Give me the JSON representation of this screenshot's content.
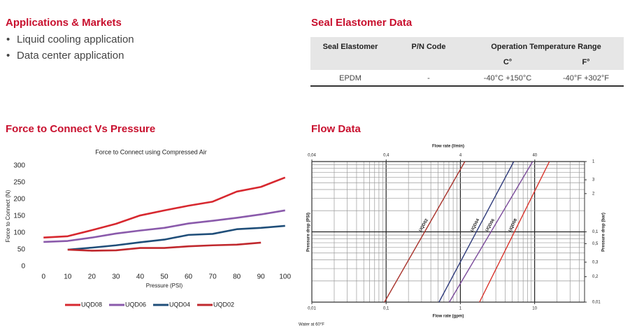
{
  "applications": {
    "title": "Applications & Markets",
    "items": [
      "Liquid cooling application",
      "Data center application"
    ]
  },
  "seal": {
    "title": "Seal Elastomer Data",
    "headers": [
      "Seal Elastomer",
      "P/N Code",
      "Operation Temperature Range"
    ],
    "subheaders": [
      "C°",
      "F°"
    ],
    "rows": [
      [
        "EPDM",
        "-",
        "-40°C +150°C",
        "-40°F +302°F"
      ]
    ]
  },
  "sections": [
    "Force to Connect Vs Pressure",
    "Flow Data"
  ],
  "chart_data": [
    {
      "type": "line",
      "title": "Force to Connect using Compressed Air",
      "xlabel": "Pressure (PSI)",
      "ylabel": "Force to Connect (N)",
      "x": [
        0,
        10,
        20,
        30,
        40,
        50,
        60,
        70,
        80,
        90,
        100
      ],
      "xlim": [
        -5,
        105
      ],
      "xticks": [
        0,
        10,
        20,
        30,
        40,
        50,
        60,
        70,
        80,
        90,
        100
      ],
      "ylim": [
        0,
        300
      ],
      "yticks": [
        0,
        50,
        100,
        150,
        200,
        250,
        300
      ],
      "grid": false,
      "legend": "bottom",
      "series": [
        {
          "name": "UQD08",
          "color": "#d7282f",
          "values": [
            86,
            90,
            108,
            127,
            152,
            167,
            181,
            193,
            223,
            237,
            265
          ]
        },
        {
          "name": "UQD06",
          "color": "#8a5aab",
          "values": [
            73,
            76,
            86,
            98,
            107,
            115,
            128,
            136,
            145,
            155,
            167
          ]
        },
        {
          "name": "UQD04",
          "color": "#1f4e79",
          "values": [
            null,
            50,
            56,
            63,
            72,
            80,
            94,
            97,
            111,
            115,
            121
          ]
        },
        {
          "name": "UQD02",
          "color": "#c0282d",
          "values": [
            null,
            50,
            47,
            48,
            55,
            55,
            60,
            63,
            65,
            71,
            null
          ]
        }
      ]
    },
    {
      "type": "line",
      "xlog": true,
      "ylog": true,
      "grid": true,
      "legend": "on-line",
      "xlabel": "Flow rate (gpm)",
      "x2label": "Flow rate (l/min)",
      "ylabel": "Pressure drop (PSI)",
      "y2label": "Pressure drop (bar)",
      "note": "Water at 60°F",
      "xlim": [
        0.01,
        47
      ],
      "xticks": [
        {
          "value": 0.01,
          "label": "0,01"
        },
        {
          "value": 0.1,
          "label": "0,1"
        },
        1,
        10
      ],
      "x2lim": [
        0.04,
        187
      ],
      "x2ticks": [
        {
          "value": 0.04,
          "label": "0,04"
        },
        {
          "value": 0.4,
          "label": "0,4"
        },
        4,
        40
      ],
      "ylim": [
        0.01,
        1
      ],
      "yticks": [
        1,
        {
          "value": 0.55,
          "label": "3"
        },
        {
          "value": 0.35,
          "label": "2"
        },
        {
          "value": 0.1,
          "label": "0,1"
        },
        {
          "value": 0.068,
          "label": "0,5"
        },
        {
          "value": 0.037,
          "label": "0,3"
        },
        {
          "value": 0.023,
          "label": "0,2"
        },
        {
          "value": 0.01,
          "label": "0,01"
        }
      ],
      "series": [
        {
          "name": "UQD02",
          "color": "#a8322b",
          "x": [
            0.095,
            1.15
          ],
          "values": [
            0.01,
            1
          ]
        },
        {
          "name": "UQD04",
          "color": "#2e3a7a",
          "x": [
            0.515,
            5.24
          ],
          "values": [
            0.01,
            1
          ]
        },
        {
          "name": "UQD06",
          "color": "#7a4a9a",
          "x": [
            0.71,
            9.4
          ],
          "values": [
            0.01,
            1
          ]
        },
        {
          "name": "UQD08",
          "color": "#d9332b",
          "x": [
            1.81,
            15.8
          ],
          "values": [
            0.01,
            1
          ]
        }
      ]
    }
  ]
}
